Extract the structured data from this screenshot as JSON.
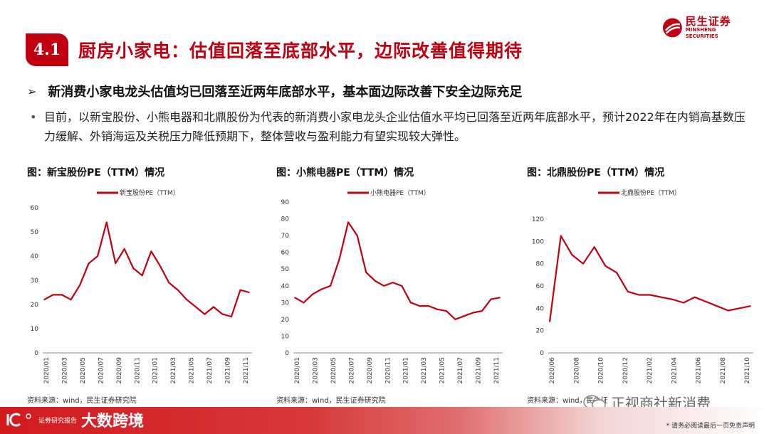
{
  "logo": {
    "cn": "民生证券",
    "en": "MINSHENG SECURITIES"
  },
  "section": {
    "number": "4.1",
    "title": "厨房小家电：估值回落至底部水平，边际改善值得期待"
  },
  "bullet_main": {
    "marker": "➢",
    "text": "新消费小家电龙头估值均已回落至近两年底部水平，基本面边际改善下安全边际充足"
  },
  "body": {
    "marker": "•",
    "text": "目前，以新宝股份、小熊电器和北鼎股份为代表的新消费小家电龙头企业估值水平均已回落至近两年底部水平，预计2022年在内销高基数压力缓解、外销海运及关税压力降低预期下，整体营收与盈利能力有望实现较大弹性。"
  },
  "figures": [
    {
      "title": "图：新宝股份PE（TTM）情况",
      "source": "资料来源：wind，民生证券研究院"
    },
    {
      "title": "图：小熊电器PE（TTM）情况",
      "source": "资料来源：wind，民生证券研究院"
    },
    {
      "title": "图：北鼎股份PE（TTM）情况",
      "source": "资料来源：wind，民生证"
    }
  ],
  "chart_data": [
    {
      "type": "line",
      "series": [
        {
          "name": "新宝股份PE（TTM）",
          "x": [
            "2020-01",
            "2020-02",
            "2020-03",
            "2020-04",
            "2020-05",
            "2020-06",
            "2020-07",
            "2020-08",
            "2020-09",
            "2020-10",
            "2020-11",
            "2020-12",
            "2021-01",
            "2021-02",
            "2021-03",
            "2021-04",
            "2021-05",
            "2021-06",
            "2021-07",
            "2021-08",
            "2021-09",
            "2021-10",
            "2021-11",
            "2021-12"
          ],
          "values": [
            22,
            24,
            24,
            22,
            28,
            37,
            40,
            54,
            37,
            43,
            35,
            32,
            42,
            36,
            29,
            26,
            22,
            19,
            16,
            19,
            16,
            15,
            26,
            25
          ],
          "color": "#c00010"
        }
      ],
      "yticks": [
        0,
        10,
        20,
        30,
        40,
        50,
        60
      ],
      "ylim": [
        0,
        60
      ],
      "xticks": [
        "2020/01",
        "2020/03",
        "2020/05",
        "2020/07",
        "2020/09",
        "2020/11",
        "2021/01",
        "2021/03",
        "2021/05",
        "2021/07",
        "2021/09",
        "2021/11"
      ]
    },
    {
      "type": "line",
      "series": [
        {
          "name": "小熊电器PE（TTM）",
          "x": [
            "2020-01",
            "2020-02",
            "2020-03",
            "2020-04",
            "2020-05",
            "2020-06",
            "2020-07",
            "2020-08",
            "2020-09",
            "2020-10",
            "2020-11",
            "2020-12",
            "2021-01",
            "2021-02",
            "2021-03",
            "2021-04",
            "2021-05",
            "2021-06",
            "2021-07",
            "2021-08",
            "2021-09",
            "2021-10",
            "2021-11",
            "2021-12"
          ],
          "values": [
            33,
            30,
            35,
            38,
            40,
            56,
            78,
            70,
            48,
            43,
            40,
            42,
            40,
            30,
            28,
            28,
            26,
            25,
            20,
            22,
            24,
            25,
            32,
            33
          ],
          "color": "#c00010"
        }
      ],
      "yticks": [
        0,
        10,
        20,
        30,
        40,
        50,
        60,
        70,
        80,
        90
      ],
      "ylim": [
        0,
        90
      ],
      "xticks": [
        "2020/01",
        "2020/03",
        "2020/05",
        "2020/07",
        "2020/09",
        "2020/11",
        "2021/01",
        "2021/03",
        "2021/05",
        "2021/07",
        "2021/09",
        "2021/11"
      ]
    },
    {
      "type": "line",
      "series": [
        {
          "name": "北鼎股份PE（TTM）",
          "x": [
            "2020-06",
            "2020-07",
            "2020-08",
            "2020-09",
            "2020-10",
            "2020-11",
            "2020-12",
            "2021-01",
            "2021-02",
            "2021-03",
            "2021-04",
            "2021-05",
            "2021-06",
            "2021-07",
            "2021-08",
            "2021-09",
            "2021-10",
            "2021-11",
            "2021-12"
          ],
          "values": [
            28,
            105,
            88,
            80,
            95,
            78,
            72,
            55,
            52,
            52,
            50,
            48,
            45,
            50,
            46,
            42,
            38,
            40,
            42
          ],
          "color": "#c00010"
        }
      ],
      "yticks": [
        0,
        20,
        40,
        60,
        80,
        100,
        120
      ],
      "ylim": [
        0,
        120
      ],
      "xticks": [
        "2020/06",
        "2020/08",
        "2020/10",
        "2020/12",
        "2021/02",
        "2021/04",
        "2021/06",
        "2021/08",
        "2021/10"
      ]
    }
  ],
  "watermark": "正视商社新消费",
  "footer": {
    "brand": "大数跨境",
    "small": "证券研究报告",
    "disclaimer": "* 请务必阅读最后一页免责声明"
  }
}
